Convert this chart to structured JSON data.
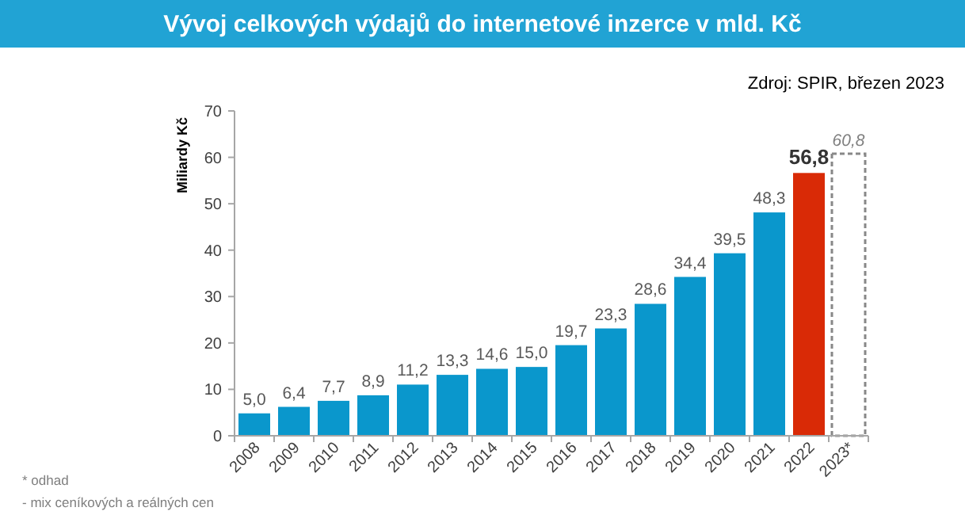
{
  "chart_data": {
    "type": "bar",
    "title": "Vývoj celkových výdajů do internetové inzerce v mld. Kč",
    "ylabel": "Miliardy Kč",
    "annotations": [
      "Zdroj: SPIR, březen 2023",
      "* odhad",
      "- mix ceníkových a reálných cen"
    ],
    "categories": [
      "2008",
      "2009",
      "2010",
      "2011",
      "2012",
      "2013",
      "2014",
      "2015",
      "2016",
      "2017",
      "2018",
      "2019",
      "2020",
      "2021",
      "2022",
      "2023*"
    ],
    "series": [
      {
        "values": [
          5.0,
          6.4,
          7.7,
          8.9,
          11.2,
          13.3,
          14.6,
          15.0,
          19.7,
          23.3,
          28.6,
          34.4,
          39.5,
          48.3,
          56.8,
          null
        ],
        "colors": [
          "#0a97cc",
          "#0a97cc",
          "#0a97cc",
          "#0a97cc",
          "#0a97cc",
          "#0a97cc",
          "#0a97cc",
          "#0a97cc",
          "#0a97cc",
          "#0a97cc",
          "#0a97cc",
          "#0a97cc",
          "#0a97cc",
          "#0a97cc",
          "#d92a06",
          null
        ],
        "value_labels": [
          "5,0",
          "6,4",
          "7,7",
          "8,9",
          "11,2",
          "13,3",
          "14,6",
          "15,0",
          "19,7",
          "23,3",
          "28,6",
          "34,4",
          "39,5",
          "48,3",
          "56,8",
          null
        ]
      },
      {
        "values": [
          null,
          null,
          null,
          null,
          null,
          null,
          null,
          null,
          null,
          null,
          null,
          null,
          null,
          null,
          null,
          60.8
        ],
        "color": "#ffffff",
        "line_style": "dashed",
        "value_labels": [
          null,
          null,
          null,
          null,
          null,
          null,
          null,
          null,
          null,
          null,
          null,
          null,
          null,
          null,
          null,
          "60,8"
        ]
      }
    ],
    "ylim": [
      0,
      70
    ],
    "yticks": [
      0,
      10,
      20,
      30,
      40,
      50,
      60,
      70
    ],
    "grid": false
  }
}
